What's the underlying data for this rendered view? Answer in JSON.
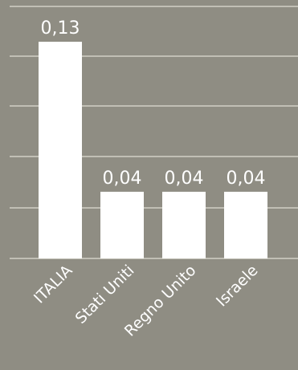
{
  "chart_data": {
    "type": "bar",
    "categories": [
      "ITALIA",
      "Stati Uniti",
      "Regno Unito",
      "Israele"
    ],
    "values": [
      0.13,
      0.04,
      0.04,
      0.04
    ],
    "value_labels": [
      "0,13",
      "0,04",
      "0,04",
      "0,04"
    ],
    "title": "",
    "xlabel": "",
    "ylabel": "",
    "ylim": [
      0,
      0.14
    ],
    "grid": true,
    "legend": "none",
    "colors": {
      "background": "#8f8d83",
      "bar": "#ffffff",
      "grid": "#d2d0c6",
      "text": "#ffffff"
    }
  }
}
